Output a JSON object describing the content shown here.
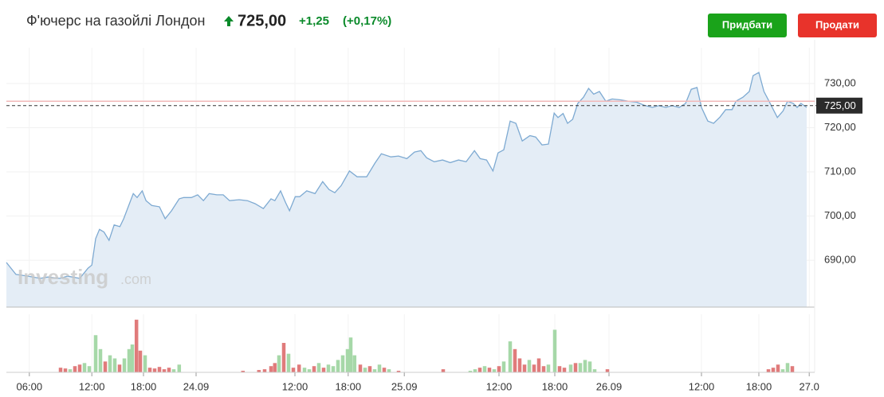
{
  "header": {
    "title": "Ф'ючерс на газойлі Лондон",
    "price": "725,00",
    "change": "+1,25",
    "change_pct": "(+0,17%)"
  },
  "buttons": [
    "Придбати",
    "Продати"
  ],
  "watermark": {
    "brand": "Investing",
    "domain": ".com"
  },
  "chart_data": {
    "type": "line",
    "series": [
      {
        "color": "#7eaad2",
        "fill": "#e4edf6",
        "x": [
          0,
          1.5,
          3.4,
          5.3,
          6.5,
          8.4,
          9.6,
          11.5,
          12.8,
          13.4,
          14,
          14.6,
          15.3,
          16.1,
          16.9,
          17.8,
          18.4,
          19,
          19.9,
          20.5,
          21.3,
          21.9,
          22.8,
          24,
          24.9,
          25.9,
          27.1,
          27.8,
          29,
          30,
          30.9,
          31.8,
          33,
          34,
          35,
          36.5,
          37.8,
          39,
          40.3,
          41.5,
          42.1,
          43,
          43.8,
          44.4,
          45.3,
          46,
          47.1,
          48.4,
          49.6,
          50.6,
          51.5,
          52.5,
          53.8,
          55,
          56.5,
          57.8,
          58.8,
          60.3,
          61.5,
          62.8,
          64,
          65,
          65.9,
          67.1,
          68.4,
          69.6,
          70.9,
          72.1,
          73.4,
          74.3,
          75.3,
          76.3,
          77.1,
          78,
          79,
          79.9,
          80.9,
          82.1,
          83,
          84,
          85,
          85.9,
          86.5,
          87.3,
          88,
          88.8,
          89.6,
          90.5,
          91.3,
          92.1,
          93,
          94,
          95,
          96.3,
          97.5,
          98.8,
          100,
          101.3,
          102.3,
          103.4,
          104.4,
          105.5,
          106.5,
          107.4,
          108.3,
          109,
          110,
          110.9,
          111.9,
          112.8,
          113.8,
          114.4,
          115.5,
          116.5,
          117.1,
          118,
          118.8,
          119.6,
          120.9,
          121.8,
          122.5,
          123.4,
          124,
          124.6,
          125.5
        ],
        "values": [
          689.5,
          686.8,
          686.4,
          685.9,
          686.2,
          685.9,
          686.4,
          685.9,
          688.2,
          688.9,
          694.9,
          697,
          696.4,
          694.5,
          698,
          697.6,
          699.4,
          701.7,
          705.1,
          704.2,
          705.7,
          703.5,
          702.4,
          702.1,
          699.4,
          701.2,
          703.9,
          704.2,
          704.2,
          704.8,
          703.5,
          705.1,
          704.8,
          704.8,
          703.5,
          703.7,
          703.5,
          702.8,
          701.7,
          703.9,
          703.5,
          705.7,
          703,
          701.2,
          704.4,
          704.4,
          705.7,
          705.1,
          707.8,
          706,
          705.3,
          706.9,
          710.2,
          708.9,
          708.9,
          712,
          714.1,
          713.4,
          713.6,
          713,
          714.5,
          714.8,
          713.2,
          712.3,
          712.7,
          712.1,
          712.7,
          712.3,
          714.8,
          713,
          712.7,
          710.2,
          714.3,
          715,
          721.5,
          721,
          717,
          718.2,
          717.9,
          716.1,
          716.3,
          723.3,
          722.3,
          723.2,
          721,
          721.9,
          725.5,
          726.9,
          728.9,
          727.6,
          728.2,
          726,
          726.5,
          726.3,
          726,
          725.8,
          725.1,
          724.6,
          725,
          724.6,
          725,
          724.6,
          725.5,
          728.7,
          729.1,
          724.6,
          721.5,
          721,
          722.4,
          724.1,
          724.1,
          726,
          726.9,
          728.2,
          731.8,
          732.5,
          728.2,
          726,
          722.3,
          723.8,
          726,
          725.5,
          724.6,
          725.5,
          724.6
        ]
      }
    ],
    "xlim": [
      0,
      127.75
    ],
    "ylim": [
      679.4,
      738.1
    ],
    "xticks": [
      {
        "value": 3.6,
        "label": "06:00"
      },
      {
        "value": 13.4,
        "label": "12:00"
      },
      {
        "value": 21.5,
        "label": "18:00"
      },
      {
        "value": 29.75,
        "label": "24.09"
      },
      {
        "value": 45.25,
        "label": "12:00"
      },
      {
        "value": 53.6,
        "label": "18:00"
      },
      {
        "value": 62.4,
        "label": "25.09"
      },
      {
        "value": 77.25,
        "label": "12:00"
      },
      {
        "value": 86,
        "label": "18:00"
      },
      {
        "value": 94.5,
        "label": "26.09"
      },
      {
        "value": 109,
        "label": "12:00"
      },
      {
        "value": 118,
        "label": "18:00"
      },
      {
        "value": 125.9,
        "label": "27.0"
      }
    ],
    "yticks": [
      {
        "value": 690,
        "label": "690,00"
      },
      {
        "value": 700,
        "label": "700,00"
      },
      {
        "value": 710,
        "label": "710,00"
      },
      {
        "value": 720,
        "label": "720,00"
      },
      {
        "value": 730,
        "label": "730,00"
      }
    ],
    "grid": true,
    "last_price": {
      "value": 725,
      "label": "725,00"
    },
    "reference_line": {
      "value": 726,
      "color": "#f2b9b9"
    },
    "volume": {
      "type": "bar",
      "ylim": [
        0,
        75
      ],
      "series": [
        {
          "color": "#a6d8a8",
          "x": [
            10,
            12.25,
            13,
            14,
            14.75,
            16.25,
            17,
            18.5,
            19.25,
            19.75,
            21.75,
            26.25,
            27.1,
            42.75,
            44.25,
            46.75,
            47.5,
            49,
            50.5,
            51.25,
            52,
            52.75,
            53.5,
            54,
            54.6,
            56.25,
            57.75,
            58.5,
            60,
            72.75,
            73.5,
            75,
            76.5,
            78,
            79,
            82,
            85,
            86,
            88.5,
            90,
            90.75,
            91.5,
            92.25,
            121.75,
            122.5
          ],
          "values": [
            4,
            12,
            8,
            48,
            30,
            22,
            18,
            18,
            30,
            36,
            22,
            4,
            10,
            22,
            24,
            6,
            4,
            12,
            10,
            8,
            16,
            22,
            30,
            45,
            22,
            6,
            4,
            10,
            4,
            2,
            4,
            8,
            4,
            14,
            40,
            16,
            10,
            55,
            10,
            12,
            16,
            14,
            4,
            4,
            12
          ]
        },
        {
          "color": "#e07b7b",
          "x": [
            8.5,
            9.25,
            10.75,
            11.5,
            15.5,
            17.75,
            20.4,
            21,
            22.5,
            23.25,
            24,
            24.75,
            25.5,
            37.1,
            39.6,
            40.5,
            41.5,
            42.1,
            43.5,
            45,
            45.9,
            48.25,
            49.75,
            55.5,
            57,
            59.25,
            61.5,
            68.5,
            74.25,
            75.75,
            77.25,
            79.75,
            80.5,
            81.25,
            82.75,
            83.5,
            84.25,
            86.75,
            87.5,
            89.25,
            94.25,
            119.5,
            120.25,
            121,
            123.25
          ],
          "values": [
            6,
            5,
            8,
            10,
            14,
            10,
            68,
            28,
            6,
            5,
            7,
            4,
            6,
            2,
            3,
            4,
            8,
            12,
            38,
            6,
            10,
            8,
            6,
            10,
            8,
            6,
            2,
            4,
            6,
            6,
            8,
            30,
            18,
            10,
            10,
            18,
            8,
            8,
            6,
            12,
            4,
            4,
            6,
            10,
            8
          ]
        }
      ]
    }
  }
}
